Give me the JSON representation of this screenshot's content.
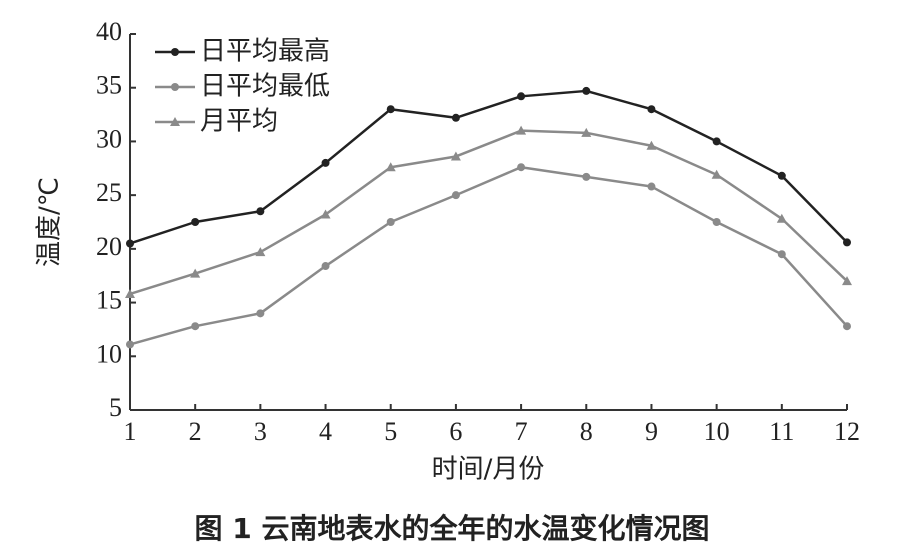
{
  "chart_data": {
    "type": "line",
    "caption": "图 1 云南地表水的全年的水温变化情况图",
    "xlabel": "时间/月份",
    "ylabel": "温度/℃",
    "x": [
      1,
      2,
      3,
      4,
      5,
      6,
      7,
      8,
      9,
      10,
      11,
      12
    ],
    "xlim": [
      1,
      12
    ],
    "xticks": [
      1,
      2,
      3,
      4,
      5,
      6,
      7,
      8,
      9,
      10,
      11,
      12
    ],
    "ylim": [
      5,
      40
    ],
    "yticks": [
      5,
      10,
      15,
      20,
      25,
      30,
      35,
      40
    ],
    "grid": false,
    "legend": "upper left",
    "series": [
      {
        "name": "日平均最高",
        "color": "#222222",
        "marker": "circle",
        "values": [
          20.5,
          22.5,
          23.5,
          28,
          33,
          32.2,
          34.2,
          34.7,
          33,
          30,
          26.8,
          20.6
        ]
      },
      {
        "name": "日平均最低",
        "color": "#8a8a8a",
        "marker": "circle",
        "values": [
          11.1,
          12.8,
          14,
          18.4,
          22.5,
          25,
          27.6,
          26.7,
          25.8,
          22.5,
          19.5,
          12.8
        ]
      },
      {
        "name": "月平均",
        "color": "#8a8a8a",
        "marker": "triangle",
        "values": [
          15.8,
          17.7,
          19.7,
          23.2,
          27.6,
          28.6,
          31,
          30.8,
          29.6,
          26.9,
          22.8,
          17
        ]
      }
    ]
  }
}
